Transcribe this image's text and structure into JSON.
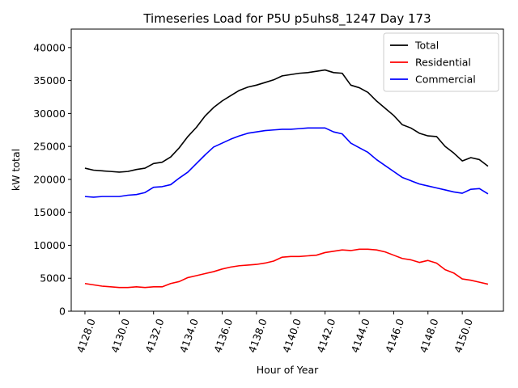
{
  "chart_data": {
    "type": "line",
    "title": "Timeseries Load for P5U p5uhs8_1247  Day 173",
    "xlabel": "Hour of Year",
    "ylabel": "kW total",
    "xlim": [
      4127.2,
      4152.4
    ],
    "ylim": [
      0,
      42800
    ],
    "xticks": [
      4128,
      4130,
      4132,
      4134,
      4136,
      4138,
      4140,
      4142,
      4144,
      4146,
      4148,
      4150
    ],
    "xtick_labels": [
      "4128.0",
      "4130.0",
      "4132.0",
      "4134.0",
      "4136.0",
      "4138.0",
      "4140.0",
      "4142.0",
      "4144.0",
      "4146.0",
      "4148.0",
      "4150.0"
    ],
    "yticks": [
      0,
      5000,
      10000,
      15000,
      20000,
      25000,
      30000,
      35000,
      40000
    ],
    "ytick_labels": [
      "0",
      "5000",
      "10000",
      "15000",
      "20000",
      "25000",
      "30000",
      "35000",
      "40000"
    ],
    "legend_position": "top-right",
    "x": [
      4128.0,
      4128.5,
      4129.0,
      4129.5,
      4130.0,
      4130.5,
      4131.0,
      4131.5,
      4132.0,
      4132.5,
      4133.0,
      4133.5,
      4134.0,
      4134.5,
      4135.0,
      4135.5,
      4136.0,
      4136.5,
      4137.0,
      4137.5,
      4138.0,
      4138.5,
      4139.0,
      4139.5,
      4140.0,
      4140.5,
      4141.0,
      4141.5,
      4142.0,
      4142.5,
      4143.0,
      4143.5,
      4144.0,
      4144.5,
      4145.0,
      4145.5,
      4146.0,
      4146.5,
      4147.0,
      4147.5,
      4148.0,
      4148.5,
      4149.0,
      4149.5,
      4150.0,
      4150.5,
      4151.0,
      4151.5
    ],
    "series": [
      {
        "name": "Total",
        "color": "#000000",
        "values": [
          21700,
          21400,
          21300,
          21200,
          21100,
          21200,
          21500,
          21700,
          22400,
          22600,
          23400,
          24800,
          26500,
          27900,
          29600,
          30900,
          31900,
          32700,
          33500,
          34000,
          34300,
          34700,
          35100,
          35700,
          35900,
          36100,
          36200,
          36400,
          36600,
          36200,
          36100,
          34300,
          33900,
          33200,
          31900,
          30800,
          29700,
          28300,
          27800,
          27000,
          26600,
          26500,
          25000,
          24000,
          22800,
          23300,
          23000,
          22000
        ]
      },
      {
        "name": "Residential",
        "color": "#ff0000",
        "values": [
          4200,
          4000,
          3800,
          3700,
          3600,
          3600,
          3700,
          3600,
          3700,
          3700,
          4200,
          4500,
          5100,
          5400,
          5700,
          6000,
          6400,
          6700,
          6900,
          7000,
          7100,
          7300,
          7600,
          8200,
          8300,
          8300,
          8400,
          8500,
          8900,
          9100,
          9300,
          9200,
          9400,
          9400,
          9300,
          9000,
          8500,
          8000,
          7800,
          7400,
          7700,
          7300,
          6300,
          5800,
          4900,
          4700,
          4400,
          4100
        ]
      },
      {
        "name": "Commercial",
        "color": "#0000ff",
        "values": [
          17400,
          17300,
          17400,
          17400,
          17400,
          17600,
          17700,
          18000,
          18800,
          18900,
          19200,
          20200,
          21100,
          22400,
          23700,
          24900,
          25500,
          26100,
          26600,
          27000,
          27200,
          27400,
          27500,
          27600,
          27600,
          27700,
          27800,
          27800,
          27800,
          27200,
          26900,
          25500,
          24800,
          24100,
          23000,
          22100,
          21200,
          20300,
          19800,
          19300,
          19000,
          18700,
          18400,
          18100,
          17900,
          18500,
          18600,
          17800
        ]
      }
    ]
  }
}
